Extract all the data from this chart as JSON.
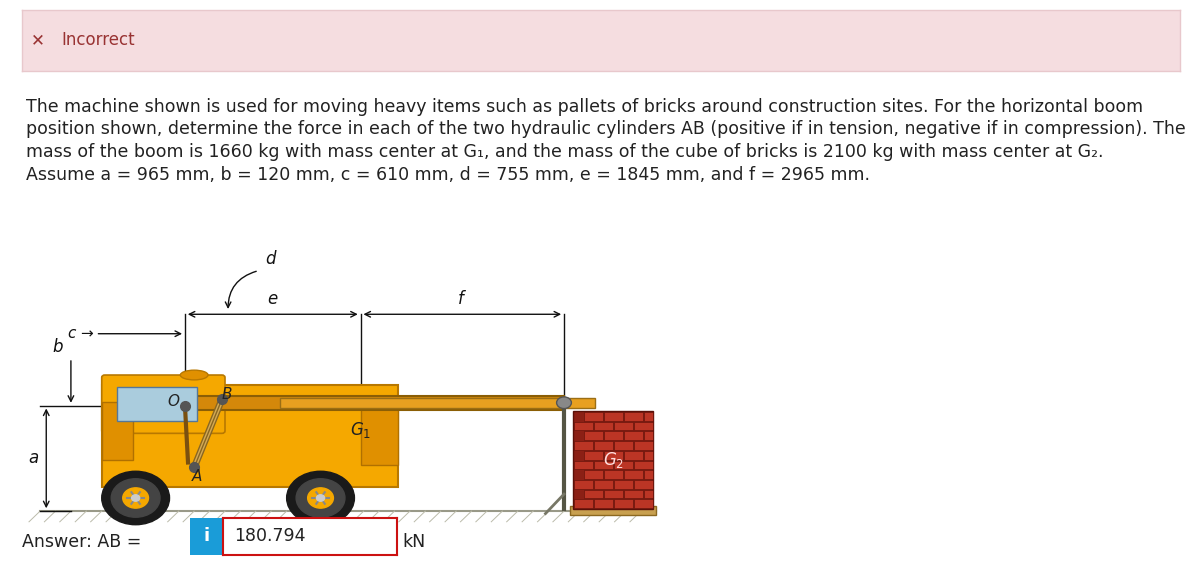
{
  "title_bar_bg": "#f5dde0",
  "title_bar_border": "#e8c8cc",
  "title_x_color": "#993333",
  "body_bg": "#ffffff",
  "text_color": "#222222",
  "text_fontsize": 12.5,
  "answer_label": "Answer: AB =",
  "answer_value": "180.794",
  "answer_unit": "kN",
  "answer_box_border": "#cc1111",
  "info_btn_bg": "#1a9cd8",
  "info_btn_text": "i",
  "ann_color": "#111111",
  "line1": "The machine shown is used for moving heavy items such as pallets of bricks around construction sites. For the horizontal boom",
  "line2": "position shown, determine the force in each of the two hydraulic cylinders AB (positive if in tension, negative if in compression). The",
  "line3": "mass of the boom is 1660 kg with mass center at G₁, and the mass of the cube of bricks is 2100 kg with mass center at G₂.",
  "line4": "Assume a = 965 mm, b = 120 mm, c = 610 mm, d = 755 mm, e = 1845 mm, and f = 2965 mm."
}
